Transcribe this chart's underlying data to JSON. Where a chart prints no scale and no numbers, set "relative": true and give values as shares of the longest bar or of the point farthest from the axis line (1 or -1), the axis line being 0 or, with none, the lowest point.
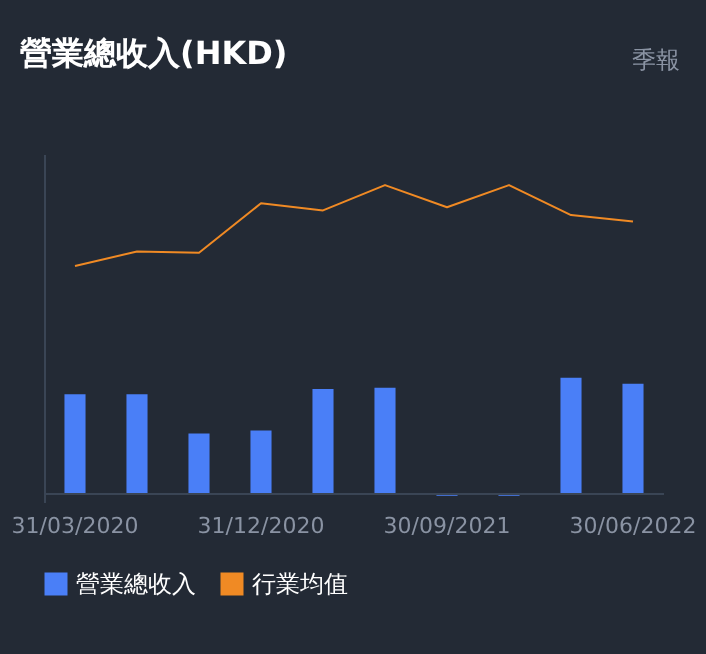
{
  "chart_data": {
    "type": "bar",
    "title": "營業總收入(HKD)",
    "annotations": [
      "季報"
    ],
    "relative": true,
    "categories": [
      "31/03/2020",
      null,
      null,
      "31/12/2020",
      null,
      null,
      "30/09/2021",
      null,
      null,
      "30/06/2022"
    ],
    "series": [
      {
        "name": "營業總收入",
        "color": "#4a7ff7",
        "values": [
          0.323,
          0.323,
          0.196,
          0.205,
          0.34,
          0.344,
          -0.006,
          -0.006,
          0.376,
          0.357
        ]
      },
      {
        "name": "行業均值",
        "type": "line",
        "color": "#f08a24",
        "values": [
          0.738,
          0.785,
          0.781,
          0.941,
          0.918,
          1,
          0.928,
          1,
          0.903,
          0.882
        ]
      }
    ],
    "legend": "bottom",
    "grid": false
  }
}
